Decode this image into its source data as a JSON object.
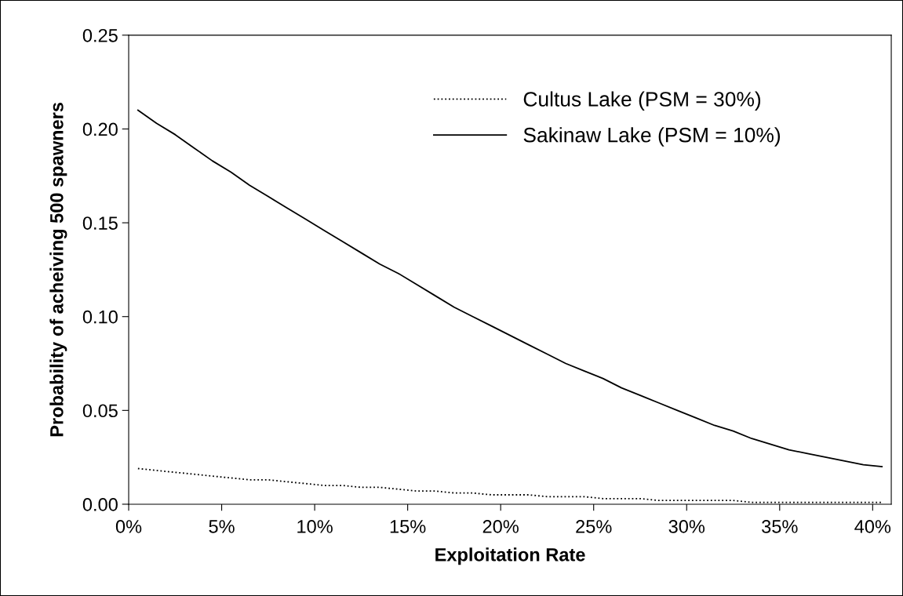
{
  "chart_data": {
    "type": "line",
    "xlabel": "Exploitation Rate",
    "ylabel": "Probability of acheiving 500 spawners",
    "x": [
      0.5,
      1.5,
      2.5,
      3.5,
      4.5,
      5.5,
      6.5,
      7.5,
      8.5,
      9.5,
      10.5,
      11.5,
      12.5,
      13.5,
      14.5,
      15.5,
      16.5,
      17.5,
      18.5,
      19.5,
      20.5,
      21.5,
      22.5,
      23.5,
      24.5,
      25.5,
      26.5,
      27.5,
      28.5,
      29.5,
      30.5,
      31.5,
      32.5,
      33.5,
      34.5,
      35.5,
      36.5,
      37.5,
      38.5,
      39.5,
      40.5
    ],
    "series": [
      {
        "name": "Cultus Lake (PSM = 30%)",
        "color": "#000000",
        "line_style": "dotted",
        "values": [
          0.019,
          0.018,
          0.017,
          0.016,
          0.015,
          0.014,
          0.013,
          0.013,
          0.012,
          0.011,
          0.01,
          0.01,
          0.009,
          0.009,
          0.008,
          0.007,
          0.007,
          0.006,
          0.006,
          0.005,
          0.005,
          0.005,
          0.004,
          0.004,
          0.004,
          0.003,
          0.003,
          0.003,
          0.002,
          0.002,
          0.002,
          0.002,
          0.002,
          0.001,
          0.001,
          0.001,
          0.001,
          0.001,
          0.001,
          0.001,
          0.001
        ]
      },
      {
        "name": "Sakinaw Lake (PSM = 10%)",
        "color": "#000000",
        "line_style": "solid",
        "values": [
          0.21,
          0.203,
          0.197,
          0.19,
          0.183,
          0.177,
          0.17,
          0.164,
          0.158,
          0.152,
          0.146,
          0.14,
          0.134,
          0.128,
          0.123,
          0.117,
          0.111,
          0.105,
          0.1,
          0.095,
          0.09,
          0.085,
          0.08,
          0.075,
          0.071,
          0.067,
          0.062,
          0.058,
          0.054,
          0.05,
          0.046,
          0.042,
          0.039,
          0.035,
          0.032,
          0.029,
          0.027,
          0.025,
          0.023,
          0.021,
          0.02
        ]
      }
    ],
    "xlim": [
      0,
      41
    ],
    "xticks": [
      {
        "value": 0,
        "label": "0%"
      },
      {
        "value": 5,
        "label": "5%"
      },
      {
        "value": 10,
        "label": "10%"
      },
      {
        "value": 15,
        "label": "15%"
      },
      {
        "value": 20,
        "label": "20%"
      },
      {
        "value": 25,
        "label": "25%"
      },
      {
        "value": 30,
        "label": "30%"
      },
      {
        "value": 35,
        "label": "35%"
      },
      {
        "value": 40,
        "label": "40%"
      }
    ],
    "ylim": [
      0,
      0.25
    ],
    "yticks": [
      {
        "value": 0,
        "label": "0.00"
      },
      {
        "value": 0.05,
        "label": "0.05"
      },
      {
        "value": 0.1,
        "label": "0.10"
      },
      {
        "value": 0.15,
        "label": "0.15"
      },
      {
        "value": 0.2,
        "label": "0.20"
      },
      {
        "value": 0.25,
        "label": "0.25"
      }
    ],
    "grid": false,
    "legend": "top right",
    "marker": "none"
  }
}
